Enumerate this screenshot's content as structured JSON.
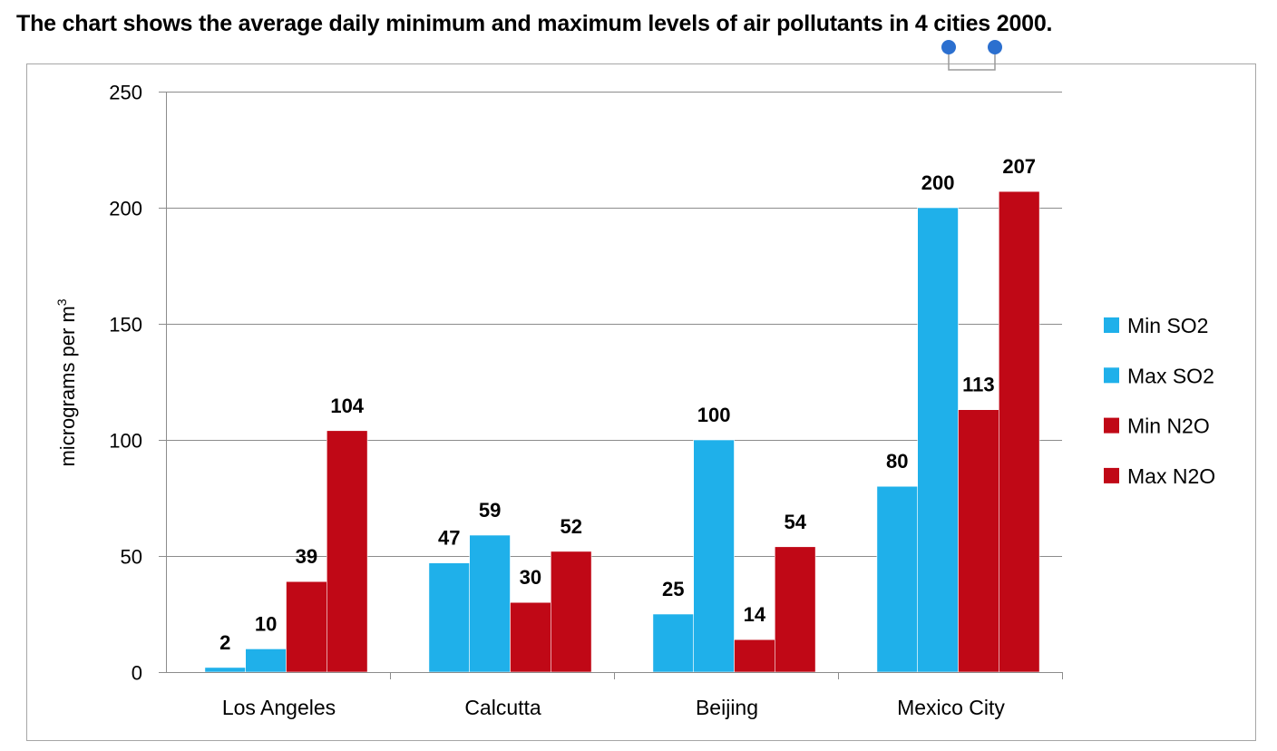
{
  "title": "The chart shows the average daily minimum and maximum levels of air pollutants in 4 cities 2000.",
  "chart_data": {
    "type": "bar",
    "title": "The chart shows the average daily minimum and maximum levels of air pollutants in 4 cities 2000.",
    "xlabel": "",
    "ylabel": "micrograms per m",
    "ylabel_superscript": "3",
    "ylim": [
      0,
      250
    ],
    "yticks": [
      0,
      50,
      100,
      150,
      200,
      250
    ],
    "grid": true,
    "legend_position": "right",
    "categories": [
      "Los Angeles",
      "Calcutta",
      "Beijing",
      "Mexico City"
    ],
    "series": [
      {
        "name": "Min SO2",
        "color": "#1fb0ea",
        "values": [
          2,
          47,
          25,
          80
        ]
      },
      {
        "name": "Max SO2",
        "color": "#1fb0ea",
        "values": [
          10,
          59,
          100,
          200
        ]
      },
      {
        "name": "Min N2O",
        "color": "#c00816",
        "values": [
          39,
          30,
          14,
          113
        ]
      },
      {
        "name": "Max N2O",
        "color": "#c00816",
        "values": [
          104,
          52,
          54,
          207
        ]
      }
    ]
  },
  "colors": {
    "gridline": "#8c8c8c",
    "frame": "#a6a6a6",
    "handle": "#2b6fcf",
    "handle_line": "#9a9a9a"
  }
}
